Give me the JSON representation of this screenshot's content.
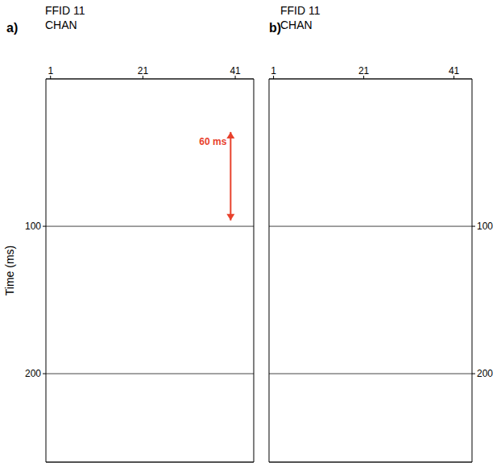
{
  "chart_data": [
    {
      "type": "scatter",
      "panel": "a)",
      "title": "FFID 11",
      "xlabel": "CHAN",
      "ylabel": "Time (ms)",
      "xlim": [
        0,
        45
      ],
      "ylim": [
        0,
        260
      ],
      "xticks": [
        1,
        21,
        41
      ],
      "yticks": [
        100,
        200
      ],
      "grid": true,
      "annotation": {
        "text": "60 ms",
        "color": "#e8412c",
        "x": 40,
        "y": [
          36,
          96
        ]
      }
    },
    {
      "type": "scatter",
      "panel": "b)",
      "title": "FFID 11",
      "xlabel": "CHAN",
      "xlim": [
        0,
        45
      ],
      "ylim": [
        0,
        260
      ],
      "xticks": [
        1,
        21,
        41
      ],
      "yticks": [
        100,
        200
      ],
      "grid": true
    }
  ]
}
